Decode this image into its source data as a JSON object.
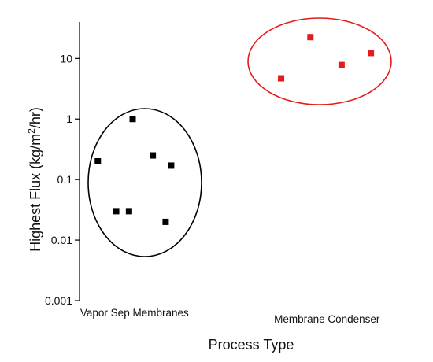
{
  "chart_data": {
    "type": "scatter",
    "title": "",
    "xlabel": "Process Type",
    "ylabel": "Highest Flux (kg/m²/hr)",
    "ylabel_parts": {
      "pre": "Highest Flux (kg/m",
      "sup": "2",
      "post": "/hr)"
    },
    "yscale": "log",
    "ylim": [
      0.001,
      40
    ],
    "yticks": [
      {
        "value": 0.001,
        "label": "0.001"
      },
      {
        "value": 0.01,
        "label": "0.01"
      },
      {
        "value": 0.1,
        "label": "0.1"
      },
      {
        "value": 1,
        "label": "1"
      },
      {
        "value": 10,
        "label": "10"
      }
    ],
    "categories": [
      "Vapor Sep Membranes",
      "Membrane Condenser"
    ],
    "series": [
      {
        "category": "Vapor Sep Membranes",
        "color": "#000000",
        "ellipse_color": "#000000",
        "points": [
          {
            "x": 1.0,
            "y": 0.2
          },
          {
            "x": 2.0,
            "y": 0.03
          },
          {
            "x": 2.7,
            "y": 0.03
          },
          {
            "x": 2.9,
            "y": 1.0
          },
          {
            "x": 4.0,
            "y": 0.25
          },
          {
            "x": 4.7,
            "y": 0.02
          },
          {
            "x": 5.0,
            "y": 0.17
          }
        ]
      },
      {
        "category": "Membrane Condenser",
        "color": "#e41a1c",
        "ellipse_color": "#e41a1c",
        "points": [
          {
            "x": 11.0,
            "y": 4.7
          },
          {
            "x": 12.6,
            "y": 22.5
          },
          {
            "x": 14.3,
            "y": 7.8
          },
          {
            "x": 15.9,
            "y": 12.3
          }
        ]
      }
    ],
    "grid": false,
    "legend": "none"
  }
}
